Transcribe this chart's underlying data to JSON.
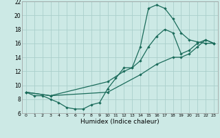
{
  "xlabel": "Humidex (Indice chaleur)",
  "background_color": "#cce9e5",
  "grid_color": "#aacfcb",
  "line_color": "#1a6b5a",
  "xlim": [
    -0.5,
    23.5
  ],
  "ylim": [
    6,
    22
  ],
  "xticks": [
    0,
    1,
    2,
    3,
    4,
    5,
    6,
    7,
    8,
    9,
    10,
    11,
    12,
    13,
    14,
    15,
    16,
    17,
    18,
    19,
    20,
    21,
    22,
    23
  ],
  "yticks": [
    6,
    8,
    10,
    12,
    14,
    16,
    18,
    20,
    22
  ],
  "line1_x": [
    0,
    1,
    2,
    3,
    4,
    5,
    6,
    7,
    8,
    9,
    10,
    11,
    12,
    13,
    14,
    15,
    16,
    17,
    18,
    19,
    20,
    21,
    22,
    23
  ],
  "line1_y": [
    9.0,
    8.5,
    8.5,
    8.0,
    7.5,
    6.8,
    6.6,
    6.6,
    7.2,
    7.5,
    9.5,
    11.0,
    12.5,
    12.5,
    15.5,
    21.0,
    21.5,
    21.0,
    19.5,
    17.5,
    16.5,
    16.2,
    16.0,
    16.0
  ],
  "line2_x": [
    0,
    3,
    10,
    12,
    13,
    14,
    15,
    16,
    17,
    18,
    19,
    20,
    21,
    22,
    23
  ],
  "line2_y": [
    9.0,
    8.5,
    10.5,
    12.0,
    12.5,
    13.5,
    15.5,
    17.0,
    18.0,
    17.5,
    14.5,
    15.0,
    16.0,
    16.5,
    16.0
  ],
  "line3_x": [
    0,
    3,
    10,
    14,
    16,
    18,
    19,
    20,
    21,
    22,
    23
  ],
  "line3_y": [
    9.0,
    8.5,
    9.0,
    11.5,
    13.0,
    14.0,
    14.0,
    14.5,
    15.5,
    16.5,
    16.0
  ]
}
